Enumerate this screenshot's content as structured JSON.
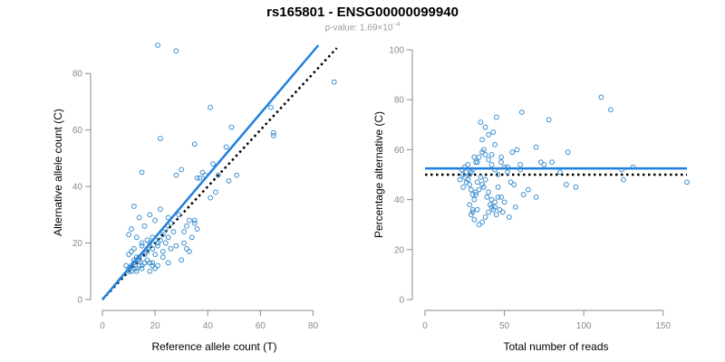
{
  "header": {
    "title": "rs165801 - ENSG00000099940",
    "pvalue_prefix": "p-value: 1.69×10",
    "pvalue_exponent": "−4"
  },
  "colors": {
    "points": "#3b8ecf",
    "fit_line": "#1f7fe0",
    "reference_line": "#000000",
    "axis": "#8a8a8a"
  },
  "chart_data": [
    {
      "type": "scatter",
      "xlabel": "Reference allele count (T)",
      "ylabel": "Alternative allele count (C)",
      "xlim": [
        0,
        85
      ],
      "ylim": [
        0,
        90
      ],
      "xticks": [
        0,
        20,
        40,
        60,
        80
      ],
      "yticks": [
        0,
        20,
        40,
        60,
        80
      ],
      "fit_line": {
        "style": "solid",
        "x": [
          0,
          82
        ],
        "y": [
          0,
          90
        ]
      },
      "reference_line": {
        "style": "dotted",
        "x": [
          0,
          89
        ],
        "y": [
          0,
          89
        ]
      },
      "x": [
        21,
        28,
        88,
        41,
        49,
        64,
        65,
        65,
        22,
        15,
        35,
        38,
        44,
        39,
        42,
        30,
        28,
        51,
        48,
        47,
        36,
        37,
        24,
        26,
        41,
        43,
        33,
        29,
        25,
        22,
        20,
        18,
        16,
        14,
        12,
        11,
        10,
        13,
        15,
        17,
        19,
        21,
        23,
        11,
        12,
        13,
        14,
        15,
        16,
        17,
        18,
        10,
        11,
        12,
        13,
        14,
        19,
        20,
        21,
        22,
        23,
        24,
        25,
        26,
        27,
        28,
        30,
        31,
        32,
        34,
        35,
        25,
        20,
        18,
        16,
        14,
        12,
        10,
        9,
        13,
        15,
        17,
        19,
        21,
        23,
        10,
        11,
        12,
        13,
        14,
        15,
        16,
        17,
        18,
        19,
        20,
        31,
        32,
        33,
        35,
        36
      ],
      "y": [
        90,
        88,
        77,
        68,
        61,
        68,
        59,
        58,
        57,
        45,
        55,
        45,
        44,
        44,
        48,
        46,
        44,
        44,
        42,
        54,
        43,
        43,
        25,
        27,
        36,
        38,
        28,
        30,
        29,
        32,
        28,
        30,
        26,
        29,
        33,
        25,
        23,
        22,
        20,
        21,
        22,
        20,
        23,
        12,
        13,
        14,
        15,
        12,
        16,
        18,
        13,
        11,
        10,
        14,
        11,
        15,
        18,
        16,
        19,
        21,
        17,
        20,
        22,
        18,
        24,
        19,
        14,
        20,
        18,
        22,
        28,
        13,
        11,
        10,
        13,
        12,
        11,
        10,
        12,
        10,
        11,
        14,
        13,
        12,
        15,
        16,
        17,
        18,
        15,
        14,
        19,
        13,
        17,
        20,
        12,
        21,
        24,
        26,
        17,
        27,
        25
      ]
    },
    {
      "type": "scatter",
      "xlabel": "Total number of reads",
      "ylabel": "Percentage alternative (C)",
      "xlim": [
        0,
        165
      ],
      "ylim": [
        0,
        100
      ],
      "xticks": [
        0,
        50,
        100,
        150
      ],
      "yticks": [
        0,
        20,
        40,
        60,
        80,
        100
      ],
      "fit_line": {
        "style": "solid",
        "y": 52.5
      },
      "reference_line": {
        "style": "dotted",
        "y": 50
      },
      "x": [
        111,
        117,
        61,
        78,
        45,
        35,
        38,
        43,
        40,
        165,
        124,
        125,
        131,
        90,
        95,
        89,
        80,
        70,
        73,
        60,
        55,
        52,
        58,
        48,
        50,
        44,
        42,
        37,
        36,
        33,
        31,
        29,
        27,
        25,
        23,
        22,
        24,
        26,
        28,
        30,
        32,
        34,
        36,
        38,
        40,
        42,
        44,
        46,
        48,
        52,
        54,
        56,
        60,
        65,
        70,
        75,
        85,
        28,
        30,
        32,
        34,
        36,
        38,
        40,
        42,
        44,
        46,
        48,
        50,
        53,
        57,
        62,
        24,
        25,
        26,
        27,
        28,
        29,
        30,
        31,
        32,
        33,
        35,
        37,
        39,
        41,
        43,
        45,
        47,
        49,
        29,
        30,
        31,
        33,
        34,
        36,
        38,
        40,
        42,
        44,
        46
      ],
      "y": [
        81,
        76,
        75,
        72,
        73,
        71,
        69,
        67,
        66,
        47,
        52,
        48,
        53,
        59,
        45,
        46,
        55,
        61,
        55,
        54,
        59,
        53,
        60,
        57,
        53,
        62,
        58,
        60,
        64,
        55,
        57,
        51,
        54,
        53,
        52,
        48,
        45,
        47,
        50,
        52,
        55,
        57,
        59,
        58,
        56,
        54,
        52,
        50,
        55,
        51,
        47,
        46,
        52,
        44,
        41,
        54,
        51,
        38,
        36,
        42,
        44,
        46,
        48,
        43,
        40,
        37,
        45,
        41,
        39,
        33,
        37,
        42,
        50,
        49,
        51,
        48,
        46,
        44,
        42,
        40,
        43,
        47,
        49,
        45,
        41,
        38,
        36,
        34,
        36,
        35,
        34,
        35,
        32,
        36,
        30,
        31,
        33,
        35,
        37,
        39,
        41
      ]
    }
  ]
}
